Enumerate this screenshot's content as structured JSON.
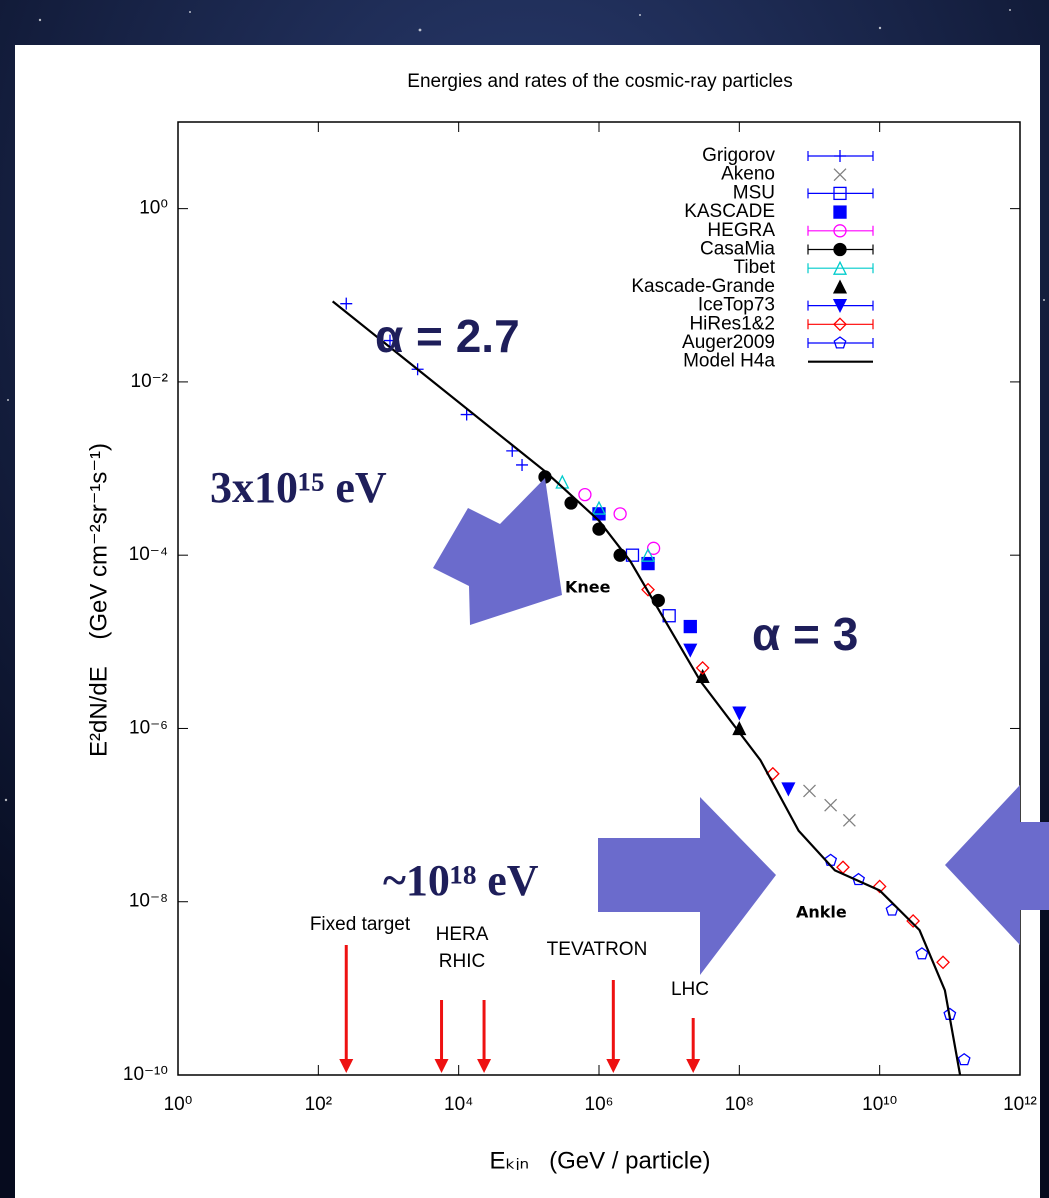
{
  "chart_data": {
    "type": "scatter",
    "title": "Energies and rates of the cosmic-ray particles",
    "x_label": "Eₖᵢₙ   (GeV / particle)",
    "y_label": "E²dN/dE    (GeV cm⁻²sr⁻¹s⁻¹)",
    "x_scale": "log",
    "y_scale": "log",
    "xlim": [
      1,
      1000000000000.0
    ],
    "ylim": [
      1e-10,
      10
    ],
    "xticks": [
      {
        "value": 1,
        "label": "10⁰"
      },
      {
        "value": 100,
        "label": "10²"
      },
      {
        "value": 10000,
        "label": "10⁴"
      },
      {
        "value": 1000000,
        "label": "10⁶"
      },
      {
        "value": 100000000,
        "label": "10⁸"
      },
      {
        "value": 10000000000,
        "label": "10¹⁰"
      },
      {
        "value": 1000000000000,
        "label": "10¹²"
      }
    ],
    "yticks": [
      {
        "value": 1e-10,
        "label": "10⁻¹⁰"
      },
      {
        "value": 1e-08,
        "label": "10⁻⁸"
      },
      {
        "value": 1e-06,
        "label": "10⁻⁶"
      },
      {
        "value": 0.0001,
        "label": "10⁻⁴"
      },
      {
        "value": 0.01,
        "label": "10⁻²"
      },
      {
        "value": 1,
        "label": "10⁰"
      }
    ],
    "legend": "upper right",
    "series": [
      {
        "name": "Grigorov",
        "color": "#0000ff",
        "marker": "plus",
        "errorbars": true,
        "x": [
          250,
          1050,
          2600,
          13000,
          58000,
          80000
        ],
        "values": [
          0.08,
          0.03,
          0.014,
          0.0042,
          0.0016,
          0.0011
        ]
      },
      {
        "name": "Akeno",
        "color": "#808080",
        "marker": "cross",
        "errorbars": false,
        "x": [
          1000000000,
          2000000000,
          3700000000
        ],
        "values": [
          1.9e-07,
          1.3e-07,
          8.7e-08
        ]
      },
      {
        "name": "MSU",
        "color": "#0000ff",
        "marker": "square-open",
        "errorbars": true,
        "x": [
          3000000,
          10000000
        ],
        "values": [
          0.0001,
          2e-05
        ]
      },
      {
        "name": "KASCADE",
        "color": "#0000ff",
        "marker": "square",
        "errorbars": false,
        "x": [
          1000000,
          5000000,
          20000000
        ],
        "values": [
          0.0003,
          8e-05,
          1.5e-05
        ]
      },
      {
        "name": "HEGRA",
        "color": "#ff00ff",
        "marker": "circle-open",
        "errorbars": true,
        "x": [
          630000,
          2000000,
          6000000
        ],
        "values": [
          0.0005,
          0.0003,
          0.00012
        ]
      },
      {
        "name": "CasaMia",
        "color": "#000000",
        "marker": "circle",
        "errorbars": true,
        "x": [
          170000,
          400000,
          1000000,
          2000000,
          7000000
        ],
        "values": [
          0.0008,
          0.0004,
          0.0002,
          0.0001,
          3e-05
        ]
      },
      {
        "name": "Tibet",
        "color": "#00cccc",
        "marker": "triangle-open",
        "errorbars": true,
        "x": [
          300000,
          1000000,
          5000000
        ],
        "values": [
          0.0007,
          0.00035,
          0.0001
        ]
      },
      {
        "name": "Kascade-Grande",
        "color": "#000000",
        "marker": "triangle",
        "errorbars": false,
        "x": [
          30000000,
          100000000
        ],
        "values": [
          4e-06,
          1e-06
        ]
      },
      {
        "name": "IceTop73",
        "color": "#0000ff",
        "marker": "triangle-down",
        "errorbars": true,
        "x": [
          20000000,
          100000000,
          500000000
        ],
        "values": [
          8e-06,
          1.5e-06,
          2e-07
        ]
      },
      {
        "name": "HiRes1&2",
        "color": "#ff0000",
        "marker": "diamond-open",
        "errorbars": true,
        "x": [
          5000000,
          30000000,
          300000000,
          3000000000,
          10000000000,
          30000000000,
          80000000000
        ],
        "values": [
          4e-05,
          5e-06,
          3e-07,
          2.5e-08,
          1.5e-08,
          6e-09,
          2e-09
        ]
      },
      {
        "name": "Auger2009",
        "color": "#0000ff",
        "marker": "pentagon-open",
        "errorbars": true,
        "x": [
          2000000000,
          5000000000,
          15000000000,
          40000000000,
          100000000000,
          160000000000
        ],
        "values": [
          3e-08,
          1.8e-08,
          8e-09,
          2.5e-09,
          5e-10,
          1.5e-10
        ]
      },
      {
        "name": "Model H4a",
        "color": "#000000",
        "type": "line",
        "x": [
          160,
          170000,
          1000000,
          2800000,
          28000000,
          200000000,
          700000000,
          2300000000,
          10000000000,
          37000000000,
          85000000000,
          140000000000
        ],
        "values": [
          0.085,
          0.00093,
          0.00025,
          8.5e-05,
          3.5e-06,
          4.3e-07,
          6.6e-08,
          2.3e-08,
          1.35e-08,
          4.7e-09,
          9.5e-10,
          1e-10
        ]
      }
    ],
    "accelerators": [
      {
        "label": "Fixed target",
        "x": 250
      },
      {
        "label": "HERA",
        "x": 5700
      },
      {
        "label": "RHIC",
        "x": 23000
      },
      {
        "label": "TEVATRON",
        "x": 1600000
      },
      {
        "label": "LHC",
        "x": 22000000
      }
    ],
    "annotations": [
      "α = 2.7",
      "α = 3",
      "3x10¹⁵ eV",
      "~10¹⁸ eV",
      "Knee",
      "Ankle"
    ]
  }
}
